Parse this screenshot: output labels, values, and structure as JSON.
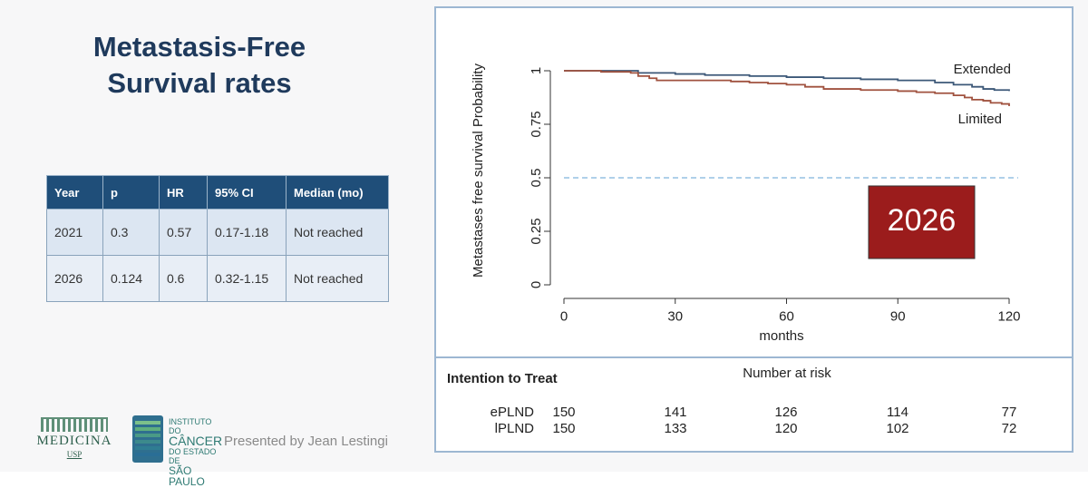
{
  "slide": {
    "title_line1": "Metastasis-Free",
    "title_line2": "Survival rates",
    "presented_by": "Presented by Jean Lestingi"
  },
  "table": {
    "headers": [
      "Year",
      "p",
      "HR",
      "95% CI",
      "Median (mo)"
    ],
    "rows": [
      [
        "2021",
        "0.3",
        "0.57",
        "0.17-1.18",
        "Not reached"
      ],
      [
        "2026",
        "0.124",
        "0.6",
        "0.32-1.15",
        "Not reached"
      ]
    ]
  },
  "logos": {
    "medicina": "MEDICINA",
    "usp": "USP",
    "icesp_lines": [
      "INSTITUTO DO",
      "CÂNCER",
      "DO ESTADO DE",
      "SÃO PAULO"
    ]
  },
  "chart_data": {
    "type": "line",
    "title": "",
    "xlabel": "months",
    "ylabel": "Metastases free survival Probability",
    "xlim": [
      0,
      120
    ],
    "ylim": [
      0,
      1
    ],
    "x_ticks": [
      0,
      30,
      60,
      90,
      120
    ],
    "y_ticks": [
      0,
      0.25,
      0.5,
      0.75,
      1
    ],
    "y_tick_labels": [
      "0",
      "0.25",
      "0.5",
      "0.75",
      "1"
    ],
    "reference_line": {
      "y": 0.5,
      "style": "dashed",
      "color": "#7fb3dc"
    },
    "badge": {
      "text": "2026",
      "color": "#9b1c1c"
    },
    "series": [
      {
        "name": "Extended",
        "color": "#3c5878",
        "x": [
          0,
          10,
          20,
          30,
          38,
          50,
          60,
          70,
          80,
          90,
          100,
          105,
          110,
          113,
          116,
          120
        ],
        "y": [
          1.0,
          1.0,
          0.99,
          0.985,
          0.98,
          0.975,
          0.97,
          0.965,
          0.96,
          0.955,
          0.945,
          0.935,
          0.925,
          0.915,
          0.91,
          0.905
        ]
      },
      {
        "name": "Limited",
        "color": "#a0523f",
        "x": [
          0,
          10,
          18,
          20,
          23,
          25,
          35,
          45,
          50,
          55,
          60,
          65,
          70,
          80,
          90,
          95,
          100,
          105,
          108,
          110,
          113,
          115,
          118,
          120
        ],
        "y": [
          1.0,
          0.995,
          0.99,
          0.975,
          0.965,
          0.955,
          0.955,
          0.95,
          0.945,
          0.94,
          0.935,
          0.925,
          0.915,
          0.91,
          0.905,
          0.9,
          0.895,
          0.885,
          0.875,
          0.865,
          0.86,
          0.85,
          0.845,
          0.835
        ]
      }
    ],
    "risk_table": {
      "header_left": "Intention to Treat",
      "title": "Number at risk",
      "rows": [
        {
          "label": "ePLND",
          "values": [
            150,
            141,
            126,
            114,
            77
          ]
        },
        {
          "label": "lPLND",
          "values": [
            150,
            133,
            120,
            102,
            72
          ]
        }
      ]
    }
  }
}
